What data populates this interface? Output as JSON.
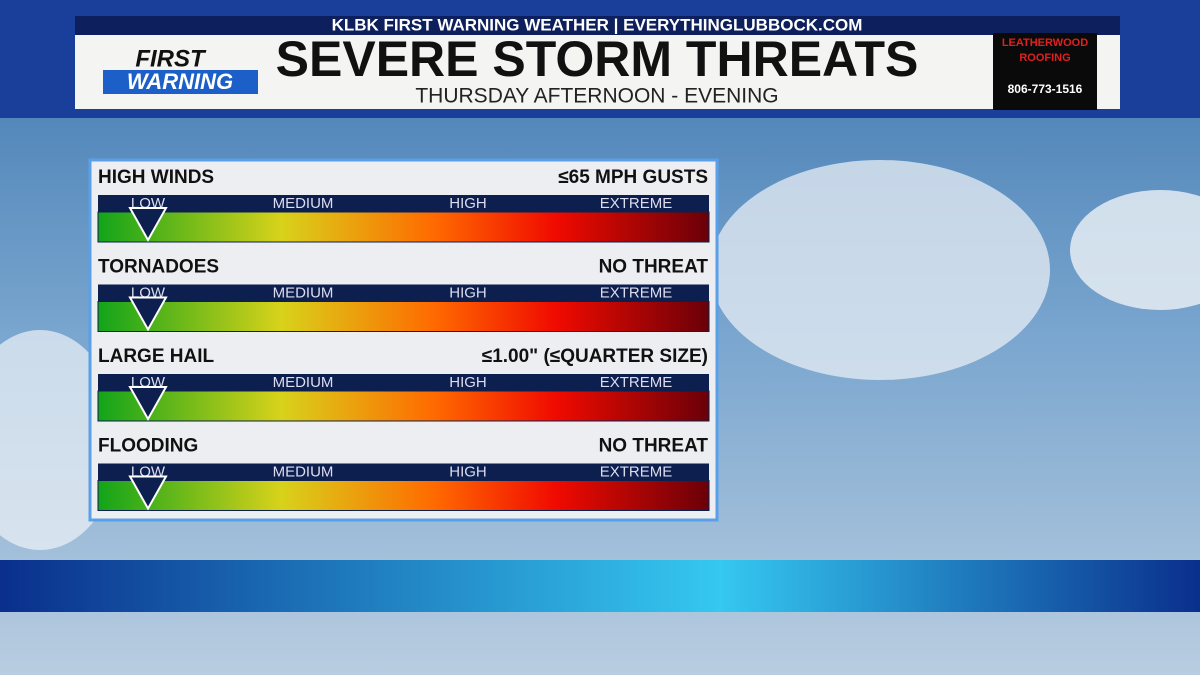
{
  "header": {
    "banner": "KLBK FIRST WARNING WEATHER | EVERYTHINGLUBBOCK.COM",
    "logo_top": "FIRST",
    "logo_bottom": "WARNING",
    "title": "SEVERE STORM THREATS",
    "subtitle": "THURSDAY AFTERNOON - EVENING",
    "sponsor": {
      "name_top": "LEATHERWOOD",
      "name_bottom": "ROOFING",
      "phone": "806-773-1516"
    }
  },
  "scale_labels": [
    "LOW",
    "MEDIUM",
    "HIGH",
    "EXTREME"
  ],
  "threats": [
    {
      "name": "HIGH WINDS",
      "detail": "≤65 MPH GUSTS"
    },
    {
      "name": "TORNADOES",
      "detail": "NO THREAT"
    },
    {
      "name": "LARGE HAIL",
      "detail": "≤1.00\" (≤QUARTER SIZE)"
    },
    {
      "name": "FLOODING",
      "detail": "NO THREAT"
    }
  ]
}
